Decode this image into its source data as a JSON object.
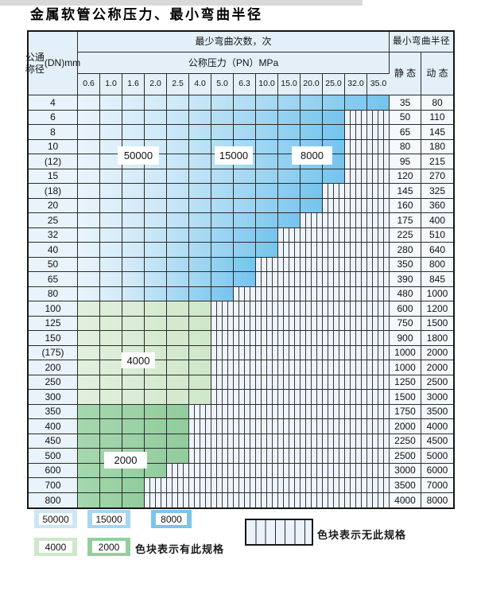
{
  "title": "金属软管公称压力、最小弯曲半径",
  "table": {
    "dn_header_lines": [
      "公称",
      "通径",
      "(DN)",
      "mm"
    ],
    "bend_cycles_header": "最少弯曲次数，次",
    "pressure_header": "公称压力（PN）MPa",
    "radius_header": "最小弯曲半径",
    "static_header": "静 态",
    "dynamic_header": "动 态",
    "pressure_columns": [
      "0.6",
      "1.0",
      "1.6",
      "2.0",
      "2.5",
      "4.0",
      "5.0",
      "6.3",
      "10.0",
      "15.0",
      "20.0",
      "25.0",
      "32.0",
      "35.0"
    ],
    "rows": [
      {
        "dn": "4",
        "rated_columns": 14,
        "shade": "blue",
        "static": "35",
        "dynamic": "80"
      },
      {
        "dn": "6",
        "rated_columns": 12,
        "shade": "blue",
        "static": "50",
        "dynamic": "110"
      },
      {
        "dn": "8",
        "rated_columns": 12,
        "shade": "blue",
        "static": "65",
        "dynamic": "145"
      },
      {
        "dn": "10",
        "rated_columns": 12,
        "shade": "blue",
        "static": "80",
        "dynamic": "180"
      },
      {
        "dn": "(12)",
        "rated_columns": 12,
        "shade": "blue",
        "static": "95",
        "dynamic": "215"
      },
      {
        "dn": "15",
        "rated_columns": 12,
        "shade": "blue",
        "static": "120",
        "dynamic": "270"
      },
      {
        "dn": "(18)",
        "rated_columns": 11,
        "shade": "blue",
        "static": "145",
        "dynamic": "325"
      },
      {
        "dn": "20",
        "rated_columns": 11,
        "shade": "blue",
        "static": "160",
        "dynamic": "360"
      },
      {
        "dn": "25",
        "rated_columns": 10,
        "shade": "blue",
        "static": "175",
        "dynamic": "400"
      },
      {
        "dn": "32",
        "rated_columns": 9,
        "shade": "blue",
        "static": "225",
        "dynamic": "510"
      },
      {
        "dn": "40",
        "rated_columns": 9,
        "shade": "blue",
        "static": "280",
        "dynamic": "640"
      },
      {
        "dn": "50",
        "rated_columns": 8,
        "shade": "blue",
        "static": "350",
        "dynamic": "800"
      },
      {
        "dn": "65",
        "rated_columns": 8,
        "shade": "blue",
        "static": "390",
        "dynamic": "845"
      },
      {
        "dn": "80",
        "rated_columns": 7,
        "shade": "blue",
        "static": "480",
        "dynamic": "1000"
      },
      {
        "dn": "100",
        "rated_columns": 6,
        "shade": "g1",
        "static": "600",
        "dynamic": "1200"
      },
      {
        "dn": "125",
        "rated_columns": 6,
        "shade": "g1",
        "static": "750",
        "dynamic": "1500"
      },
      {
        "dn": "150",
        "rated_columns": 6,
        "shade": "g1",
        "static": "900",
        "dynamic": "1800"
      },
      {
        "dn": "(175)",
        "rated_columns": 6,
        "shade": "g1",
        "static": "1000",
        "dynamic": "2000"
      },
      {
        "dn": "200",
        "rated_columns": 6,
        "shade": "g1",
        "static": "1000",
        "dynamic": "2000"
      },
      {
        "dn": "250",
        "rated_columns": 6,
        "shade": "g1",
        "static": "1250",
        "dynamic": "2500"
      },
      {
        "dn": "300",
        "rated_columns": 6,
        "shade": "g1",
        "static": "1500",
        "dynamic": "3000"
      },
      {
        "dn": "350",
        "rated_columns": 5,
        "shade": "g2",
        "static": "1750",
        "dynamic": "3500"
      },
      {
        "dn": "400",
        "rated_columns": 5,
        "shade": "g2",
        "static": "2000",
        "dynamic": "4000"
      },
      {
        "dn": "450",
        "rated_columns": 5,
        "shade": "g2",
        "static": "2250",
        "dynamic": "4500"
      },
      {
        "dn": "500",
        "rated_columns": 5,
        "shade": "g2",
        "static": "2500",
        "dynamic": "5000"
      },
      {
        "dn": "600",
        "rated_columns": 4,
        "shade": "g2",
        "static": "3000",
        "dynamic": "6000"
      },
      {
        "dn": "700",
        "rated_columns": 3,
        "shade": "g2",
        "static": "3500",
        "dynamic": "7000"
      },
      {
        "dn": "800",
        "rated_columns": 3,
        "shade": "g2",
        "static": "4000",
        "dynamic": "8000"
      }
    ]
  },
  "cycle_labels": {
    "l50000": "50000",
    "l15000": "15000",
    "l8000": "8000",
    "l4000": "4000",
    "l2000": "2000"
  },
  "legend": {
    "items": [
      {
        "label": "50000",
        "color": "#cde6f6"
      },
      {
        "label": "15000",
        "color": "#a6d6f1"
      },
      {
        "label": "8000",
        "color": "#7cc4ea"
      },
      {
        "label": "4000",
        "color": "#cfe8cb"
      },
      {
        "label": "2000",
        "color": "#96cf9f"
      }
    ],
    "has_spec_text": "色块表示有此规格",
    "no_spec_text": "色块表示无此规格"
  },
  "colors": {
    "blue_light": "#cfe9f8",
    "blue_mid": "#a8d9f3",
    "blue_dark": "#74c4ee",
    "green_light": "#cfe7c9",
    "green_mid": "#92cc9d",
    "hatch_bg": "#eef4fb",
    "grid_line": "#2b2b2b",
    "header_bg": "#e3f0fa"
  }
}
